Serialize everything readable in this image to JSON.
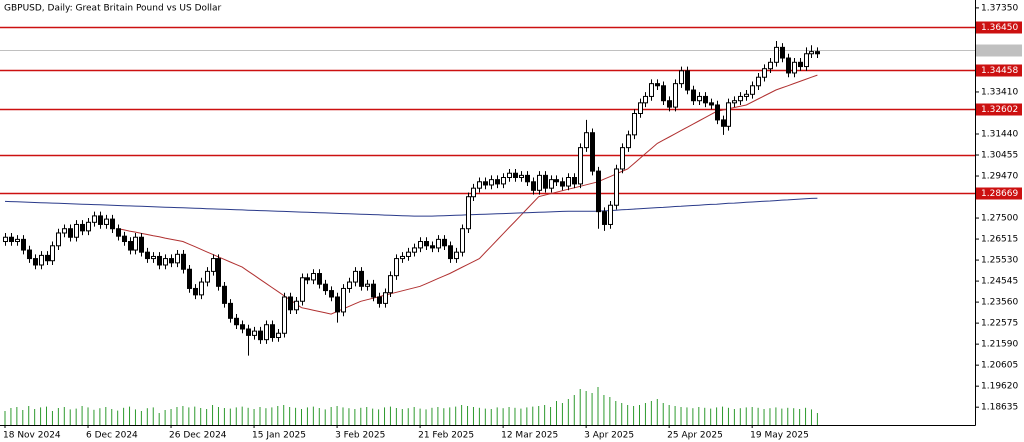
{
  "chart_data": {
    "type": "candlestick",
    "title": "GBPUSD, Daily:  Great Britain Pound vs US Dollar",
    "categories": [
      "18 Nov 2024",
      null,
      null,
      null,
      null,
      null,
      null,
      null,
      null,
      null,
      null,
      null,
      null,
      null,
      "6 Dec 2024",
      null,
      null,
      null,
      null,
      null,
      null,
      null,
      null,
      null,
      null,
      null,
      null,
      null,
      "26 Dec 2024",
      null,
      null,
      null,
      null,
      null,
      null,
      null,
      null,
      null,
      null,
      null,
      null,
      null,
      "15 Jan 2025",
      null,
      null,
      null,
      null,
      null,
      null,
      null,
      null,
      null,
      null,
      null,
      null,
      null,
      "3 Feb 2025",
      null,
      null,
      null,
      null,
      null,
      null,
      null,
      null,
      null,
      null,
      null,
      null,
      null,
      "21 Feb 2025",
      null,
      null,
      null,
      null,
      null,
      null,
      null,
      null,
      null,
      null,
      null,
      null,
      null,
      "12 Mar 2025",
      null,
      null,
      null,
      null,
      null,
      null,
      null,
      null,
      null,
      null,
      null,
      null,
      null,
      "3 Apr 2025",
      null,
      null,
      null,
      null,
      null,
      null,
      null,
      null,
      null,
      null,
      null,
      null,
      null,
      "25 Apr 2025",
      null,
      null,
      null,
      null,
      null,
      null,
      null,
      null,
      null,
      null,
      null,
      null,
      null,
      "19 May 2025",
      null,
      null,
      null,
      null,
      null,
      null,
      null,
      null,
      null,
      null,
      null
    ],
    "open": [
      1.264,
      1.266,
      1.264,
      1.265,
      1.26,
      1.256,
      1.253,
      1.2575,
      1.255,
      1.262,
      1.268,
      1.27,
      1.266,
      1.272,
      1.269,
      1.273,
      1.276,
      1.272,
      1.2745,
      1.27,
      1.2665,
      1.264,
      1.26,
      1.266,
      1.259,
      1.256,
      1.257,
      1.253,
      1.256,
      1.254,
      1.258,
      1.251,
      1.242,
      1.239,
      1.245,
      1.25,
      1.256,
      1.243,
      1.235,
      1.228,
      1.225,
      1.223,
      1.22,
      1.222,
      1.218,
      1.225,
      1.219,
      1.221,
      1.238,
      1.232,
      1.236,
      1.247,
      1.246,
      1.249,
      1.244,
      1.241,
      1.238,
      1.231,
      1.242,
      1.245,
      1.25,
      1.243,
      1.244,
      1.238,
      1.235,
      1.24,
      1.248,
      1.256,
      1.257,
      1.259,
      1.261,
      1.264,
      1.262,
      1.261,
      1.265,
      1.262,
      1.256,
      1.259,
      1.27,
      1.285,
      1.289,
      1.292,
      1.2905,
      1.293,
      1.291,
      1.294,
      1.296,
      1.294,
      1.295,
      1.292,
      1.288,
      1.295,
      1.289,
      1.293,
      1.292,
      1.29,
      1.294,
      1.291,
      1.308,
      1.315,
      1.297,
      1.278,
      1.272,
      1.281,
      1.298,
      1.308,
      1.314,
      1.324,
      1.329,
      1.332,
      1.338,
      1.337,
      1.33,
      1.327,
      1.338,
      1.344,
      1.335,
      1.33,
      1.332,
      1.329,
      1.328,
      1.321,
      1.318,
      1.329,
      1.33,
      1.332,
      1.333,
      1.337,
      1.341,
      1.345,
      1.348,
      1.355,
      1.35,
      1.343,
      1.348,
      1.346,
      1.352,
      1.353
    ],
    "high": [
      1.268,
      1.268,
      1.267,
      1.267,
      1.262,
      1.258,
      1.2595,
      1.2595,
      1.264,
      1.27,
      1.272,
      1.272,
      1.274,
      1.274,
      1.275,
      1.278,
      1.278,
      1.2765,
      1.2765,
      1.272,
      1.2685,
      1.266,
      1.268,
      1.268,
      1.261,
      1.259,
      1.259,
      1.258,
      1.258,
      1.26,
      1.26,
      1.253,
      1.244,
      1.247,
      1.252,
      1.258,
      1.258,
      1.245,
      1.237,
      1.23,
      1.227,
      1.225,
      1.224,
      1.224,
      1.227,
      1.227,
      1.223,
      1.24,
      1.24,
      1.238,
      1.249,
      1.249,
      1.251,
      1.251,
      1.246,
      1.243,
      1.24,
      1.244,
      1.247,
      1.252,
      1.252,
      1.246,
      1.246,
      1.24,
      1.242,
      1.25,
      1.258,
      1.259,
      1.261,
      1.263,
      1.266,
      1.266,
      1.264,
      1.267,
      1.267,
      1.264,
      1.261,
      1.272,
      1.287,
      1.291,
      1.294,
      1.294,
      1.295,
      1.295,
      1.296,
      1.298,
      1.298,
      1.297,
      1.297,
      1.294,
      1.297,
      1.297,
      1.295,
      1.295,
      1.294,
      1.296,
      1.296,
      1.31,
      1.321,
      1.317,
      1.299,
      1.28,
      1.283,
      1.3,
      1.31,
      1.316,
      1.326,
      1.331,
      1.334,
      1.34,
      1.34,
      1.339,
      1.332,
      1.34,
      1.346,
      1.346,
      1.337,
      1.334,
      1.334,
      1.331,
      1.33,
      1.323,
      1.331,
      1.332,
      1.334,
      1.335,
      1.339,
      1.343,
      1.347,
      1.35,
      1.358,
      1.357,
      1.352,
      1.35,
      1.35,
      1.355,
      1.356,
      1.355
    ],
    "low": [
      1.262,
      1.262,
      1.262,
      1.258,
      1.254,
      1.251,
      1.251,
      1.253,
      1.253,
      1.26,
      1.266,
      1.264,
      1.264,
      1.267,
      1.267,
      1.271,
      1.27,
      1.27,
      1.268,
      1.2645,
      1.262,
      1.258,
      1.258,
      1.257,
      1.254,
      1.254,
      1.251,
      1.251,
      1.252,
      1.252,
      1.249,
      1.24,
      1.237,
      1.237,
      1.243,
      1.248,
      1.241,
      1.233,
      1.226,
      1.223,
      1.221,
      1.2105,
      1.218,
      1.216,
      1.216,
      1.217,
      1.217,
      1.219,
      1.23,
      1.23,
      1.234,
      1.244,
      1.244,
      1.242,
      1.239,
      1.236,
      1.226,
      1.229,
      1.24,
      1.243,
      1.241,
      1.241,
      1.236,
      1.233,
      1.233,
      1.238,
      1.246,
      1.254,
      1.255,
      1.257,
      1.259,
      1.26,
      1.259,
      1.259,
      1.26,
      1.254,
      1.254,
      1.257,
      1.268,
      1.283,
      1.287,
      1.2885,
      1.2885,
      1.289,
      1.289,
      1.292,
      1.292,
      1.292,
      1.29,
      1.286,
      1.286,
      1.287,
      1.287,
      1.29,
      1.288,
      1.288,
      1.289,
      1.289,
      1.306,
      1.295,
      1.27,
      1.269,
      1.27,
      1.279,
      1.296,
      1.306,
      1.312,
      1.322,
      1.327,
      1.33,
      1.335,
      1.328,
      1.325,
      1.325,
      1.336,
      1.333,
      1.328,
      1.328,
      1.327,
      1.326,
      1.319,
      1.314,
      1.316,
      1.327,
      1.328,
      1.33,
      1.331,
      1.335,
      1.339,
      1.343,
      1.346,
      1.348,
      1.341,
      1.341,
      1.344,
      1.344,
      1.35,
      1.35
    ],
    "close": [
      1.266,
      1.264,
      1.265,
      1.26,
      1.256,
      1.253,
      1.2575,
      1.255,
      1.262,
      1.268,
      1.27,
      1.266,
      1.272,
      1.269,
      1.273,
      1.276,
      1.272,
      1.2745,
      1.27,
      1.2665,
      1.264,
      1.26,
      1.266,
      1.259,
      1.256,
      1.257,
      1.253,
      1.256,
      1.254,
      1.258,
      1.251,
      1.242,
      1.239,
      1.245,
      1.25,
      1.256,
      1.243,
      1.235,
      1.228,
      1.225,
      1.223,
      1.22,
      1.222,
      1.218,
      1.225,
      1.219,
      1.221,
      1.238,
      1.232,
      1.236,
      1.247,
      1.246,
      1.249,
      1.244,
      1.241,
      1.238,
      1.231,
      1.242,
      1.245,
      1.25,
      1.243,
      1.244,
      1.238,
      1.235,
      1.24,
      1.248,
      1.256,
      1.257,
      1.259,
      1.261,
      1.264,
      1.262,
      1.261,
      1.265,
      1.262,
      1.256,
      1.259,
      1.27,
      1.285,
      1.289,
      1.292,
      1.2905,
      1.293,
      1.291,
      1.294,
      1.296,
      1.294,
      1.295,
      1.292,
      1.288,
      1.295,
      1.289,
      1.293,
      1.292,
      1.29,
      1.294,
      1.291,
      1.308,
      1.315,
      1.297,
      1.278,
      1.272,
      1.281,
      1.298,
      1.308,
      1.314,
      1.324,
      1.329,
      1.332,
      1.338,
      1.337,
      1.33,
      1.327,
      1.338,
      1.344,
      1.335,
      1.33,
      1.332,
      1.329,
      1.328,
      1.321,
      1.318,
      1.329,
      1.33,
      1.332,
      1.333,
      1.337,
      1.341,
      1.345,
      1.348,
      1.355,
      1.35,
      1.343,
      1.348,
      1.346,
      1.352,
      1.353,
      1.352
    ],
    "volume": [
      70,
      85,
      90,
      75,
      95,
      80,
      88,
      92,
      70,
      85,
      90,
      78,
      82,
      95,
      88,
      76,
      84,
      90,
      80,
      72,
      86,
      92,
      78,
      70,
      84,
      88,
      60,
      75,
      80,
      90,
      95,
      88,
      92,
      85,
      80,
      100,
      90,
      85,
      82,
      88,
      92,
      86,
      80,
      90,
      84,
      88,
      95,
      100,
      90,
      86,
      80,
      88,
      92,
      85,
      78,
      90,
      95,
      88,
      84,
      80,
      86,
      90,
      82,
      78,
      88,
      92,
      85,
      80,
      84,
      90,
      82,
      78,
      86,
      90,
      84,
      88,
      92,
      100,
      95,
      90,
      86,
      82,
      80,
      88,
      84,
      90,
      86,
      82,
      88,
      92,
      95,
      100,
      90,
      120,
      110,
      130,
      150,
      180,
      170,
      160,
      190,
      150,
      140,
      120,
      110,
      100,
      95,
      100,
      110,
      120,
      130,
      110,
      100,
      95,
      90,
      88,
      84,
      90,
      86,
      82,
      88,
      92,
      86,
      80,
      84,
      88,
      90,
      86,
      80,
      84,
      88,
      82,
      86,
      84,
      80,
      86,
      78,
      60
    ],
    "ma": [
      {
        "color": "#b03030",
        "values": [
          null,
          null,
          null,
          null,
          null,
          null,
          null,
          null,
          null,
          null,
          null,
          null,
          null,
          null,
          null,
          null,
          null,
          null,
          null,
          1.27,
          1.2695,
          1.2689,
          1.2684,
          1.2678,
          1.2673,
          1.2667,
          1.2662,
          1.2656,
          1.2651,
          1.2645,
          1.264,
          1.2628,
          1.2616,
          1.2604,
          1.2592,
          1.258,
          1.2568,
          1.2556,
          1.2544,
          1.2532,
          1.252,
          1.2501,
          1.2482,
          1.2463,
          1.2444,
          1.2425,
          1.2406,
          1.2387,
          1.2368,
          1.2349,
          1.233,
          1.2324,
          1.2318,
          1.2312,
          1.2306,
          1.23,
          1.2312,
          1.2324,
          1.2336,
          1.2348,
          1.236,
          1.2367,
          1.2374,
          1.2381,
          1.2388,
          1.2395,
          1.2402,
          1.2409,
          1.2416,
          1.2423,
          1.243,
          1.2442,
          1.2454,
          1.2466,
          1.2478,
          1.249,
          1.2504,
          1.2518,
          1.2532,
          1.2546,
          1.256,
          1.2589,
          1.2618,
          1.2647,
          1.2676,
          1.2705,
          1.2734,
          1.2763,
          1.2792,
          1.2821,
          1.285,
          1.2857,
          1.2864,
          1.2871,
          1.2878,
          1.2885,
          1.2892,
          1.2899,
          1.2906,
          1.2913,
          1.292,
          1.2932,
          1.2944,
          1.2956,
          1.2968,
          1.298,
          1.3004,
          1.3028,
          1.3052,
          1.3076,
          1.31,
          1.3115,
          1.313,
          1.3145,
          1.316,
          1.3175,
          1.319,
          1.3205,
          1.322,
          1.3235,
          1.325,
          1.3256,
          1.3262,
          1.3268,
          1.3274,
          1.328,
          1.3294,
          1.3308,
          1.3322,
          1.3336,
          1.335,
          1.336,
          1.337,
          1.338,
          1.339,
          1.34,
          1.341,
          1.342
        ]
      },
      {
        "color": "#2a3a8a",
        "values": [
          1.2828,
          1.2827,
          1.2826,
          1.2825,
          1.2824,
          1.2823,
          1.2822,
          1.2821,
          1.282,
          1.2819,
          1.2818,
          1.2817,
          1.2816,
          1.2815,
          1.2814,
          1.2813,
          1.2812,
          1.2811,
          1.281,
          1.2809,
          1.2808,
          1.2807,
          1.2806,
          1.2805,
          1.2804,
          1.2803,
          1.2802,
          1.2801,
          1.28,
          1.2799,
          1.2798,
          1.2797,
          1.2796,
          1.2795,
          1.2794,
          1.2793,
          1.2792,
          1.2791,
          1.279,
          1.2789,
          1.2788,
          1.2787,
          1.2786,
          1.2785,
          1.2784,
          1.2783,
          1.2782,
          1.2781,
          1.278,
          1.2779,
          1.2778,
          1.2777,
          1.2776,
          1.2775,
          1.2774,
          1.2773,
          1.2772,
          1.2771,
          1.277,
          1.2769,
          1.2768,
          1.2767,
          1.2766,
          1.2765,
          1.2764,
          1.2763,
          1.2762,
          1.2761,
          1.276,
          1.2759,
          1.2759,
          1.2759,
          1.2759,
          1.276,
          1.2761,
          1.2762,
          1.2763,
          1.2764,
          1.2765,
          1.2766,
          1.2767,
          1.2768,
          1.2769,
          1.277,
          1.2771,
          1.2772,
          1.2773,
          1.2774,
          1.2775,
          1.2776,
          1.2777,
          1.2778,
          1.2779,
          1.278,
          1.2781,
          1.2782,
          1.2782,
          1.2782,
          1.2782,
          1.2782,
          1.2782,
          1.2784,
          1.2785,
          1.2787,
          1.2789,
          1.279,
          1.2792,
          1.2794,
          1.2795,
          1.2797,
          1.2799,
          1.28,
          1.2802,
          1.2804,
          1.2805,
          1.2807,
          1.2809,
          1.281,
          1.2812,
          1.2814,
          1.2815,
          1.2817,
          1.2819,
          1.282,
          1.2822,
          1.2824,
          1.2825,
          1.2827,
          1.2829,
          1.283,
          1.2832,
          1.2834,
          1.2835,
          1.2837,
          1.2839,
          1.284,
          1.2842,
          1.2843
        ]
      }
    ],
    "levels": [
      {
        "value": 1.3645,
        "label": "1.36450"
      },
      {
        "value": 1.34458,
        "label": "1.34458"
      },
      {
        "value": 1.32602,
        "label": "1.32602"
      },
      1.30455,
      {
        "value": 1.28669,
        "label": "1.28669"
      }
    ],
    "current_price": 1.3537,
    "ylim": [
      1.178,
      1.3772
    ],
    "yticks": [
      {
        "value": 1.3735,
        "label": "1.37350"
      },
      {
        "value": 1.3341,
        "label": "1.33410"
      },
      {
        "value": 1.3144,
        "label": "1.31440"
      },
      1.30455,
      {
        "value": 1.2947,
        "label": "1.29470"
      },
      {
        "value": 1.275,
        "label": "1.27500"
      },
      1.26515,
      {
        "value": 1.2553,
        "label": "1.25530"
      },
      1.24545,
      {
        "value": 1.2356,
        "label": "1.23560"
      },
      1.22575,
      {
        "value": 1.2159,
        "label": "1.21590"
      },
      1.20605,
      {
        "value": 1.1962,
        "label": "1.19620"
      },
      1.18635
    ],
    "up_color": "#ffffff",
    "down_color": "#000000",
    "volume_color": "#2e9a2e",
    "level_color": "#cc1010"
  }
}
